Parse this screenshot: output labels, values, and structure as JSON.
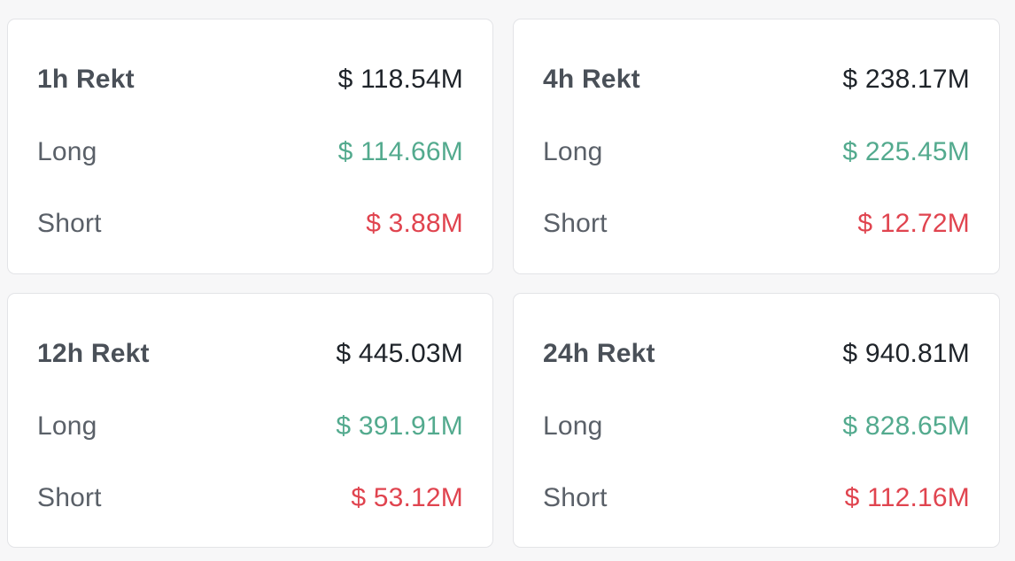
{
  "colors": {
    "background": "#f7f7f8",
    "card": "#ffffff",
    "long": "#53aa8e",
    "short": "#e0444f",
    "total": "#1e2329"
  },
  "cards": [
    {
      "title": "1h Rekt",
      "total": "$ 118.54M",
      "long_label": "Long",
      "long": "$ 114.66M",
      "short_label": "Short",
      "short": "$ 3.88M"
    },
    {
      "title": "4h Rekt",
      "total": "$ 238.17M",
      "long_label": "Long",
      "long": "$ 225.45M",
      "short_label": "Short",
      "short": "$ 12.72M"
    },
    {
      "title": "12h Rekt",
      "total": "$ 445.03M",
      "long_label": "Long",
      "long": "$ 391.91M",
      "short_label": "Short",
      "short": "$ 53.12M"
    },
    {
      "title": "24h Rekt",
      "total": "$ 940.81M",
      "long_label": "Long",
      "long": "$ 828.65M",
      "short_label": "Short",
      "short": "$ 112.16M"
    }
  ]
}
